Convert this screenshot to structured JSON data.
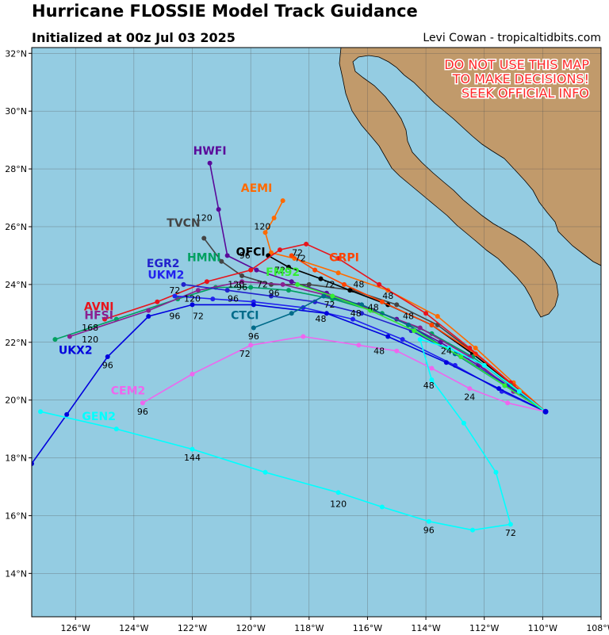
{
  "header": {
    "title": "Hurricane FLOSSIE Model Track Guidance",
    "subtitle": "Initialized at 00z Jul 03 2025",
    "credit": "Levi Cowan - tropicaltidbits.com"
  },
  "warning": [
    "DO NOT USE THIS MAP",
    "TO MAKE DECISIONS!",
    "SEEK OFFICIAL INFO"
  ],
  "colors": {
    "ocean": "#94cce2",
    "land": "#c19a6b",
    "grid": "#555555",
    "warning": "#ff2a2a"
  },
  "chart_data": {
    "type": "map-tracks",
    "lon_range": [
      -127.5,
      -108
    ],
    "lat_range": [
      12.5,
      32.2
    ],
    "lon_ticks": [
      -126,
      -124,
      -122,
      -120,
      -118,
      -116,
      -114,
      -112,
      -110,
      -108
    ],
    "lon_tick_labels": [
      "126°W",
      "124°W",
      "122°W",
      "120°W",
      "118°W",
      "116°W",
      "114°W",
      "112°W",
      "110°W",
      "108°W"
    ],
    "lat_ticks": [
      14,
      16,
      18,
      20,
      22,
      24,
      26,
      28,
      30,
      32
    ],
    "lat_tick_labels": [
      "14°N",
      "16°N",
      "18°N",
      "20°N",
      "22°N",
      "24°N",
      "26°N",
      "28°N",
      "30°N",
      "32°N"
    ],
    "grid": true,
    "origin": [
      -109.9,
      19.6
    ],
    "models": [
      {
        "name": "HWFI",
        "color": "#5a0a9a",
        "label_at": [
          -121.4,
          28.5
        ],
        "points": [
          [
            -109.9,
            19.6
          ],
          [
            -110.9,
            20.3
          ],
          [
            -112.2,
            21.2
          ],
          [
            -113.5,
            22.0
          ],
          [
            -115.0,
            22.8
          ],
          [
            -116.3,
            23.3
          ],
          [
            -117.4,
            23.7
          ],
          [
            -118.6,
            24.1
          ],
          [
            -119.8,
            24.5
          ],
          [
            -120.8,
            25.0
          ],
          [
            -121.1,
            26.6
          ],
          [
            -121.4,
            28.2
          ]
        ],
        "hour_labels": [
          {
            "text": "120",
            "at": [
              -121.6,
              26.2
            ]
          }
        ]
      },
      {
        "name": "AEMI",
        "color": "#ff6a00",
        "label_at": [
          -119.8,
          27.2
        ],
        "points": [
          [
            -109.9,
            19.6
          ],
          [
            -111.0,
            20.6
          ],
          [
            -112.3,
            21.8
          ],
          [
            -113.6,
            22.9
          ],
          [
            -115.3,
            23.8
          ],
          [
            -117.0,
            24.4
          ],
          [
            -118.5,
            24.9
          ],
          [
            -119.3,
            25.1
          ],
          [
            -119.5,
            25.8
          ],
          [
            -119.2,
            26.3
          ],
          [
            -118.9,
            26.9
          ]
        ],
        "hour_labels": [
          {
            "text": "120",
            "at": [
              -119.6,
              25.9
            ]
          },
          {
            "text": "96",
            "at": [
              -120.2,
              24.9
            ]
          }
        ]
      },
      {
        "name": "TVCN",
        "color": "#444444",
        "label_at": [
          -122.3,
          26.0
        ],
        "points": [
          [
            -109.9,
            19.6
          ],
          [
            -111.0,
            20.5
          ],
          [
            -112.3,
            21.6
          ],
          [
            -113.6,
            22.6
          ],
          [
            -115.0,
            23.3
          ],
          [
            -116.5,
            23.8
          ],
          [
            -118.0,
            24.0
          ],
          [
            -119.3,
            24.0
          ],
          [
            -120.3,
            24.3
          ],
          [
            -121.0,
            24.8
          ],
          [
            -121.6,
            25.6
          ]
        ],
        "hour_labels": []
      },
      {
        "name": "OFCI",
        "color": "#000000",
        "label_at": [
          -120.0,
          25.0
        ],
        "points": [
          [
            -109.9,
            19.6
          ],
          [
            -111.0,
            20.5
          ],
          [
            -112.4,
            21.6
          ],
          [
            -113.8,
            22.6
          ],
          [
            -115.3,
            23.3
          ],
          [
            -116.6,
            23.8
          ],
          [
            -117.6,
            24.2
          ],
          [
            -118.7,
            24.6
          ],
          [
            -119.4,
            25.0
          ]
        ],
        "hour_labels": [
          {
            "text": "72",
            "at": [
              -119.0,
              24.4
            ]
          }
        ]
      },
      {
        "name": "GRPI",
        "color": "#ff4400",
        "label_at": [
          -116.8,
          24.8
        ],
        "points": [
          [
            -109.9,
            19.6
          ],
          [
            -111.0,
            20.5
          ],
          [
            -112.3,
            21.6
          ],
          [
            -113.8,
            22.6
          ],
          [
            -115.5,
            23.4
          ],
          [
            -116.8,
            24.0
          ],
          [
            -117.8,
            24.5
          ],
          [
            -118.6,
            25.0
          ]
        ],
        "hour_labels": [
          {
            "text": "48",
            "at": [
              -116.3,
              23.9
            ]
          },
          {
            "text": "72",
            "at": [
              -118.4,
              25.0
            ]
          }
        ]
      },
      {
        "name": "AVNI",
        "color": "#e8141c",
        "label_at": [
          -125.2,
          23.1
        ],
        "points": [
          [
            -109.9,
            19.6
          ],
          [
            -111.1,
            20.6
          ],
          [
            -112.5,
            21.8
          ],
          [
            -114.0,
            23.0
          ],
          [
            -115.6,
            24.0
          ],
          [
            -117.0,
            24.9
          ],
          [
            -118.1,
            25.4
          ],
          [
            -119.0,
            25.2
          ],
          [
            -120.0,
            24.5
          ],
          [
            -121.5,
            24.1
          ],
          [
            -123.2,
            23.4
          ],
          [
            -125.0,
            22.8
          ]
        ],
        "hour_labels": [
          {
            "text": "72",
            "at": [
              -118.3,
              24.8
            ]
          }
        ]
      },
      {
        "name": "HMNI",
        "color": "#00a060",
        "label_at": [
          -121.6,
          24.8
        ],
        "points": [
          [
            -109.9,
            19.6
          ],
          [
            -111.1,
            20.5
          ],
          [
            -112.4,
            21.5
          ],
          [
            -113.8,
            22.3
          ],
          [
            -115.5,
            23.0
          ],
          [
            -117.2,
            23.5
          ],
          [
            -118.7,
            23.8
          ],
          [
            -120.0,
            23.9
          ],
          [
            -121.2,
            23.9
          ],
          [
            -122.5,
            23.5
          ],
          [
            -124.6,
            22.8
          ],
          [
            -126.7,
            22.1
          ]
        ],
        "hour_labels": []
      },
      {
        "name": "HFSI",
        "color": "#8a2090",
        "label_at": [
          -125.2,
          22.8
        ],
        "points": [
          [
            -109.9,
            19.6
          ],
          [
            -111.0,
            20.3
          ],
          [
            -112.5,
            21.5
          ],
          [
            -114.2,
            22.5
          ],
          [
            -115.8,
            23.1
          ],
          [
            -117.3,
            23.6
          ],
          [
            -118.9,
            24.0
          ],
          [
            -120.3,
            24.1
          ],
          [
            -121.8,
            23.8
          ],
          [
            -123.5,
            23.1
          ],
          [
            -126.2,
            22.2
          ]
        ],
        "hour_labels": [
          {
            "text": "168",
            "at": [
              -125.5,
              22.4
            ]
          },
          {
            "text": "120",
            "at": [
              -125.5,
              22.0
            ]
          }
        ]
      },
      {
        "name": "EGR2",
        "color": "#2222cc",
        "label_at": [
          -123.0,
          24.6
        ],
        "points": [
          [
            -109.9,
            19.6
          ],
          [
            -111.2,
            20.5
          ],
          [
            -112.8,
            21.5
          ],
          [
            -114.5,
            22.4
          ],
          [
            -116.2,
            23.0
          ],
          [
            -117.8,
            23.4
          ],
          [
            -119.3,
            23.6
          ],
          [
            -120.8,
            23.8
          ],
          [
            -122.3,
            24.0
          ]
        ],
        "hour_labels": [
          {
            "text": "72",
            "at": [
              -122.6,
              23.7
            ]
          }
        ]
      },
      {
        "name": "UKM2",
        "color": "#2222ee",
        "label_at": [
          -122.9,
          24.2
        ],
        "points": [
          [
            -109.9,
            19.6
          ],
          [
            -111.4,
            20.3
          ],
          [
            -113.0,
            21.2
          ],
          [
            -114.8,
            22.1
          ],
          [
            -116.5,
            22.8
          ],
          [
            -118.2,
            23.2
          ],
          [
            -119.9,
            23.4
          ],
          [
            -121.3,
            23.5
          ],
          [
            -122.6,
            23.6
          ]
        ],
        "hour_labels": [
          {
            "text": "120",
            "at": [
              -122.0,
              23.4
            ]
          }
        ]
      },
      {
        "name": "UKX2",
        "color": "#0000dd",
        "label_at": [
          -126.0,
          21.6
        ],
        "points": [
          [
            -109.9,
            19.6
          ],
          [
            -111.5,
            20.4
          ],
          [
            -113.3,
            21.3
          ],
          [
            -115.3,
            22.2
          ],
          [
            -117.4,
            23.0
          ],
          [
            -119.9,
            23.3
          ],
          [
            -122.0,
            23.3
          ],
          [
            -123.5,
            22.9
          ],
          [
            -124.9,
            21.5
          ],
          [
            -126.3,
            19.5
          ],
          [
            -127.5,
            17.8
          ]
        ],
        "hour_labels": [
          {
            "text": "96",
            "at": [
              -124.9,
              21.1
            ]
          },
          {
            "text": "72",
            "at": [
              -121.8,
              22.8
            ]
          },
          {
            "text": "96",
            "at": [
              -122.6,
              22.8
            ]
          }
        ]
      },
      {
        "name": "CTCI",
        "color": "#006b8a",
        "label_at": [
          -120.2,
          22.8
        ],
        "points": [
          [
            -109.9,
            19.6
          ],
          [
            -111.3,
            20.5
          ],
          [
            -113.0,
            21.6
          ],
          [
            -114.6,
            22.6
          ],
          [
            -116.2,
            23.3
          ],
          [
            -117.5,
            23.6
          ],
          [
            -118.6,
            23.0
          ],
          [
            -119.9,
            22.5
          ]
        ],
        "hour_labels": [
          {
            "text": "48",
            "at": [
              -117.6,
              22.7
            ]
          },
          {
            "text": "96",
            "at": [
              -119.9,
              22.1
            ]
          }
        ]
      },
      {
        "name": "FM92",
        "color": "#33ee33",
        "label_at": [
          -118.9,
          24.3
        ],
        "points": [
          [
            -109.9,
            19.6
          ],
          [
            -111.3,
            20.5
          ],
          [
            -112.8,
            21.5
          ],
          [
            -114.4,
            22.4
          ],
          [
            -115.9,
            23.1
          ],
          [
            -117.2,
            23.6
          ],
          [
            -118.4,
            24.0
          ]
        ],
        "hour_labels": []
      },
      {
        "name": "CEM2",
        "color": "#ee66ee",
        "label_at": [
          -124.2,
          20.2
        ],
        "points": [
          [
            -109.9,
            19.6
          ],
          [
            -111.2,
            19.9
          ],
          [
            -112.5,
            20.4
          ],
          [
            -113.8,
            21.1
          ],
          [
            -115.0,
            21.7
          ],
          [
            -116.3,
            21.9
          ],
          [
            -118.2,
            22.2
          ],
          [
            -120.0,
            21.9
          ],
          [
            -122.0,
            20.9
          ],
          [
            -123.7,
            19.9
          ]
        ],
        "hour_labels": [
          {
            "text": "72",
            "at": [
              -120.2,
              21.5
            ]
          },
          {
            "text": "96",
            "at": [
              -123.7,
              19.5
            ]
          }
        ]
      },
      {
        "name": "GEN2",
        "color": "#00ffff",
        "label_at": [
          -125.2,
          19.3
        ],
        "points": [
          [
            -109.9,
            19.6
          ],
          [
            -110.8,
            20.3
          ],
          [
            -112.0,
            21.2
          ],
          [
            -113.2,
            21.8
          ],
          [
            -114.2,
            22.1
          ],
          [
            -113.8,
            20.7
          ],
          [
            -112.7,
            19.2
          ],
          [
            -111.6,
            17.5
          ],
          [
            -111.1,
            15.7
          ],
          [
            -112.4,
            15.5
          ],
          [
            -113.9,
            15.8
          ],
          [
            -115.5,
            16.3
          ],
          [
            -117.0,
            16.8
          ],
          [
            -119.5,
            17.5
          ],
          [
            -122.0,
            18.3
          ],
          [
            -124.6,
            19.0
          ],
          [
            -127.2,
            19.6
          ]
        ],
        "hour_labels": [
          {
            "text": "48",
            "at": [
              -113.9,
              20.4
            ]
          },
          {
            "text": "24",
            "at": [
              -112.5,
              20.0
            ]
          },
          {
            "text": "72",
            "at": [
              -111.1,
              15.3
            ]
          },
          {
            "text": "96",
            "at": [
              -113.9,
              15.4
            ]
          },
          {
            "text": "120",
            "at": [
              -117.0,
              16.3
            ]
          },
          {
            "text": "144",
            "at": [
              -122.0,
              17.9
            ]
          }
        ]
      }
    ],
    "hour_labels_misc": [
      {
        "text": "48",
        "at": [
          -115.6,
          21.6
        ]
      },
      {
        "text": "24",
        "at": [
          -113.3,
          21.6
        ]
      },
      {
        "text": "48",
        "at": [
          -114.6,
          22.8
        ]
      },
      {
        "text": "48",
        "at": [
          -115.8,
          23.1
        ]
      },
      {
        "text": "48",
        "at": [
          -116.4,
          22.9
        ]
      },
      {
        "text": "72",
        "at": [
          -117.3,
          23.2
        ]
      },
      {
        "text": "96",
        "at": [
          -120.3,
          23.8
        ]
      },
      {
        "text": "120",
        "at": [
          -120.5,
          23.9
        ]
      },
      {
        "text": "96",
        "at": [
          -120.6,
          23.4
        ]
      },
      {
        "text": "72",
        "at": [
          -119.6,
          23.9
        ]
      },
      {
        "text": "96",
        "at": [
          -119.2,
          23.6
        ]
      },
      {
        "text": "72",
        "at": [
          -117.3,
          23.9
        ]
      },
      {
        "text": "48",
        "at": [
          -115.3,
          23.5
        ]
      }
    ]
  }
}
